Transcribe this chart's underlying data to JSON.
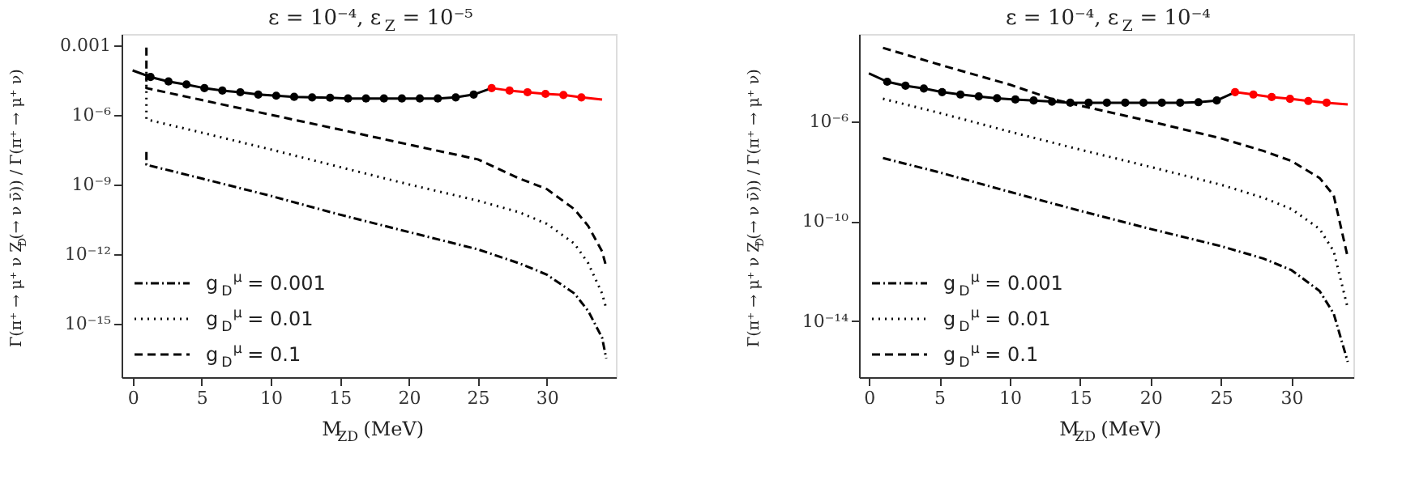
{
  "chart_data": [
    {
      "type": "line",
      "title": "ε = 10⁻⁴, ε$_{Z}$ = 10⁻⁵",
      "xlabel": "M$_{ZD}$ (MeV)",
      "ylabel": "Γ(π⁺ → μ⁺ ν Z$_{D}$(→ ν ν̄)) / Γ(π⁺ → μ⁺ ν)",
      "log": true,
      "grid": false,
      "legend": "bottom left",
      "xlim": [
        -0.8,
        35
      ],
      "xticks": [
        0,
        5,
        10,
        15,
        20,
        25,
        30
      ],
      "ylim": [
        5e-18,
        0.003
      ],
      "yticks": [
        0.001,
        {
          "value": 1e-06,
          "label": "10⁻⁶"
        },
        {
          "value": 1e-09,
          "label": "10⁻⁹"
        },
        {
          "value": 1e-12,
          "label": "10⁻¹²"
        },
        {
          "value": 1e-15,
          "label": "10⁻¹⁵"
        }
      ],
      "series": [
        {
          "name": "g$_{D}$$^{μ}$ = 0.001",
          "type": "line",
          "line_style": "dashdot",
          "color": "#000000",
          "x": [
            1,
            1,
            5,
            10,
            15,
            20,
            25,
            28,
            30,
            32,
            33,
            34,
            34.3
          ],
          "values": [
            2.5e-08,
            7e-09,
            1.8e-09,
            3.2e-10,
            5e-11,
            8.9e-12,
            1.6e-12,
            4e-13,
            1.3e-13,
            2e-14,
            3.5e-15,
            2.5e-16,
            3.2e-17
          ]
        },
        {
          "name": "g$_{D}$$^{μ}$ = 0.01",
          "type": "line",
          "line_style": "dotted",
          "color": "#000000",
          "x": [
            1,
            1,
            5,
            10,
            15,
            20,
            25,
            28,
            30,
            32,
            33,
            34,
            34.3
          ],
          "values": [
            7e-05,
            6.3e-07,
            1.7e-07,
            3.2e-08,
            5.6e-09,
            1e-09,
            2e-10,
            6.3e-11,
            2e-11,
            2.8e-12,
            4e-13,
            2e-14,
            4.5e-15
          ]
        },
        {
          "name": "g$_{D}$$^{μ}$ = 0.1",
          "type": "line",
          "line_style": "dashed",
          "color": "#000000",
          "x": [
            1,
            1,
            5,
            10,
            15,
            20,
            25,
            28,
            30,
            32,
            33,
            34,
            34.3
          ],
          "values": [
            0.00079,
            1.4e-05,
            4.3e-06,
            1e-06,
            2.3e-07,
            5.2e-08,
            1.2e-08,
            1.8e-09,
            6.3e-10,
            8.5e-11,
            1.6e-11,
            1.3e-12,
            2.8e-13
          ]
        },
        {
          "type": "line",
          "line_style": "solid",
          "color": "#000000",
          "x": [
            0,
            1.3,
            2.6,
            3.9,
            5.2,
            6.5,
            7.8,
            9.1,
            10.4,
            11.7,
            13,
            14.3,
            15.6,
            16.9,
            18.2,
            19.5,
            20.8,
            22.1,
            23.4,
            24.7,
            26
          ],
          "values": [
            8.1e-05,
            4.2e-05,
            2.7e-05,
            2e-05,
            1.4e-05,
            1.1e-05,
            9.3e-06,
            7.4e-06,
            6.6e-06,
            5.9e-06,
            5.6e-06,
            5.4e-06,
            5e-06,
            5e-06,
            5e-06,
            5e-06,
            5e-06,
            5e-06,
            5.6e-06,
            7.4e-06,
            1.4e-05
          ]
        },
        {
          "type": "scatter",
          "marker": "circle",
          "color": "#000000",
          "x": [
            1.3,
            2.6,
            3.9,
            5.2,
            6.5,
            7.8,
            9.1,
            10.4,
            11.7,
            13,
            14.3,
            15.6,
            16.9,
            18.2,
            19.5,
            20.8,
            22.1,
            23.4,
            24.7
          ],
          "values": [
            4.2e-05,
            2.7e-05,
            2e-05,
            1.4e-05,
            1.1e-05,
            9.3e-06,
            7.4e-06,
            6.6e-06,
            5.9e-06,
            5.6e-06,
            5.4e-06,
            5e-06,
            5e-06,
            5e-06,
            5e-06,
            5e-06,
            5e-06,
            5.6e-06,
            7.4e-06
          ]
        },
        {
          "type": "line",
          "line_style": "solid",
          "color": "#ff0000",
          "x": [
            26,
            27.3,
            28.6,
            29.9,
            31.2,
            32.5,
            34
          ],
          "values": [
            1.4e-05,
            1.1e-05,
            9.3e-06,
            7.9e-06,
            7.1e-06,
            5.6e-06,
            4.5e-06
          ]
        },
        {
          "type": "scatter",
          "marker": "circle",
          "color": "#ff0000",
          "x": [
            26,
            27.3,
            28.6,
            29.9,
            31.2,
            32.5
          ],
          "values": [
            1.4e-05,
            1.1e-05,
            9.3e-06,
            7.9e-06,
            7.1e-06,
            5.6e-06
          ]
        }
      ]
    },
    {
      "type": "line",
      "title": "ε = 10⁻⁴, ε$_{Z}$ = 10⁻⁴",
      "xlabel": "M$_{ZD}$ (MeV)",
      "ylabel": "Γ(π⁺ → μ⁺ ν Z$_{D}$(→ ν ν̄)) / Γ(π⁺ → μ⁺ ν)",
      "log": true,
      "grid": false,
      "legend": "bottom left",
      "xlim": [
        -0.7,
        34.4
      ],
      "xticks": [
        0,
        5,
        10,
        15,
        20,
        25,
        30
      ],
      "ylim": [
        5.6e-17,
        0.0032
      ],
      "yticks": [
        {
          "value": 1e-06,
          "label": "10⁻⁶"
        },
        {
          "value": 1e-10,
          "label": "10⁻¹⁰"
        },
        {
          "value": 1e-14,
          "label": "10⁻¹⁴"
        }
      ],
      "series": [
        {
          "name": "g$_{D}$$^{μ}$ = 0.001",
          "type": "line",
          "line_style": "dashdot",
          "color": "#000000",
          "x": [
            1,
            5,
            10,
            15,
            20,
            25,
            28,
            30,
            32,
            33,
            34
          ],
          "values": [
            3.4e-08,
            9.1e-09,
            1.5e-09,
            2.6e-10,
            4.9e-11,
            1e-11,
            3.2e-12,
            1.1e-12,
            1.6e-13,
            2e-14,
            2.3e-16
          ]
        },
        {
          "name": "g$_{D}$$^{μ}$ = 0.01",
          "type": "line",
          "line_style": "dotted",
          "color": "#000000",
          "x": [
            1,
            5,
            10,
            15,
            20,
            25,
            28,
            30,
            32,
            33,
            34
          ],
          "values": [
            8.1e-06,
            2.2e-06,
            3.9e-07,
            7.4e-08,
            1.5e-08,
            2.9e-09,
            8.7e-10,
            3.1e-10,
            4.9e-11,
            6.3e-12,
            3.3e-14
          ]
        },
        {
          "name": "g$_{D}$$^{μ}$ = 0.1",
          "type": "line",
          "line_style": "dashed",
          "color": "#000000",
          "x": [
            1,
            5,
            10,
            13,
            15,
            20,
            25,
            28,
            30,
            32,
            33,
            34
          ],
          "values": [
            0.00089,
            0.00019,
            3e-05,
            7.9e-06,
            4.3e-06,
            1e-06,
            2.1e-07,
            6.6e-08,
            2.6e-08,
            5.4e-09,
            1.1e-09,
            3.6e-12
          ]
        },
        {
          "type": "line",
          "line_style": "solid",
          "color": "#000000",
          "x": [
            0,
            1.3,
            2.6,
            3.9,
            5.2,
            6.5,
            7.8,
            9.1,
            10.4,
            11.7,
            13,
            14.3,
            15.6,
            16.9,
            18.2,
            19.5,
            20.8,
            22.1,
            23.4,
            24.7,
            26
          ],
          "values": [
            8.5e-05,
            3.9e-05,
            2.7e-05,
            2.1e-05,
            1.5e-05,
            1.2e-05,
            1e-05,
            8.5e-06,
            7.6e-06,
            6.9e-06,
            6.2e-06,
            5.6e-06,
            5.6e-06,
            5.6e-06,
            5.6e-06,
            5.6e-06,
            5.6e-06,
            5.6e-06,
            5.9e-06,
            6.9e-06,
            1.5e-05
          ]
        },
        {
          "type": "scatter",
          "marker": "circle",
          "color": "#000000",
          "x": [
            1.3,
            2.6,
            3.9,
            5.2,
            6.5,
            7.8,
            9.1,
            10.4,
            11.7,
            13,
            14.3,
            15.6,
            16.9,
            18.2,
            19.5,
            20.8,
            22.1,
            23.4,
            24.7
          ],
          "values": [
            3.9e-05,
            2.7e-05,
            2.1e-05,
            1.5e-05,
            1.2e-05,
            1e-05,
            8.5e-06,
            7.6e-06,
            6.9e-06,
            6.2e-06,
            5.6e-06,
            5.6e-06,
            5.6e-06,
            5.6e-06,
            5.6e-06,
            5.6e-06,
            5.6e-06,
            5.9e-06,
            6.9e-06
          ]
        },
        {
          "type": "line",
          "line_style": "solid",
          "color": "#ff0000",
          "x": [
            26,
            27.3,
            28.6,
            29.9,
            31.2,
            32.5,
            34
          ],
          "values": [
            1.5e-05,
            1.2e-05,
            9.5e-06,
            8.1e-06,
            6.6e-06,
            5.6e-06,
            4.8e-06
          ]
        },
        {
          "type": "scatter",
          "marker": "circle",
          "color": "#ff0000",
          "x": [
            26,
            27.3,
            28.6,
            29.9,
            31.2,
            32.5
          ],
          "values": [
            1.5e-05,
            1.2e-05,
            9.5e-06,
            8.1e-06,
            6.6e-06,
            5.6e-06
          ]
        }
      ]
    }
  ]
}
